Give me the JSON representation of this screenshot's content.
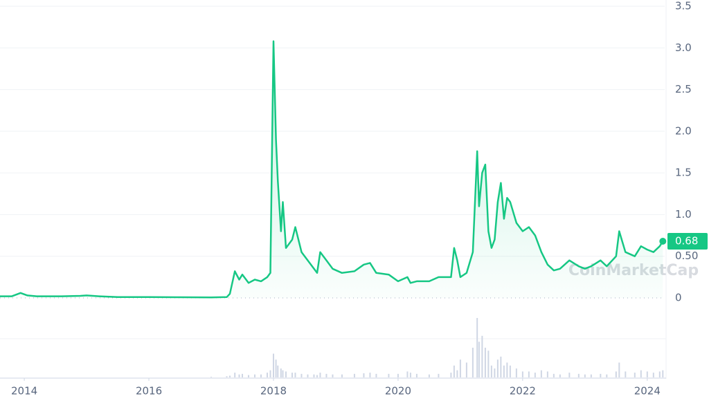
{
  "chart_data": {
    "type": "line",
    "watermark": "CoinMarketCap",
    "x": [
      2013.61,
      2013.8,
      2013.94,
      2014.05,
      2014.2,
      2014.6,
      2014.9,
      2015.0,
      2015.2,
      2015.5,
      2016.0,
      2016.5,
      2017.0,
      2017.25,
      2017.3,
      2017.38,
      2017.45,
      2017.5,
      2017.6,
      2017.7,
      2017.8,
      2017.9,
      2017.95,
      2018.0,
      2018.04,
      2018.07,
      2018.12,
      2018.15,
      2018.2,
      2018.3,
      2018.35,
      2018.45,
      2018.55,
      2018.65,
      2018.7,
      2018.75,
      2018.85,
      2018.95,
      2019.1,
      2019.3,
      2019.45,
      2019.55,
      2019.65,
      2019.85,
      2020.0,
      2020.15,
      2020.2,
      2020.3,
      2020.5,
      2020.65,
      2020.85,
      2020.9,
      2020.95,
      2021.0,
      2021.1,
      2021.2,
      2021.27,
      2021.3,
      2021.35,
      2021.4,
      2021.45,
      2021.5,
      2021.55,
      2021.6,
      2021.65,
      2021.7,
      2021.75,
      2021.8,
      2021.9,
      2022.0,
      2022.1,
      2022.2,
      2022.3,
      2022.4,
      2022.5,
      2022.6,
      2022.75,
      2022.9,
      2023.0,
      2023.1,
      2023.25,
      2023.35,
      2023.5,
      2023.55,
      2023.65,
      2023.8,
      2023.9,
      2024.0,
      2024.1,
      2024.2,
      2024.25
    ],
    "series": [
      {
        "color": "#16c784",
        "values": [
          0.02,
          0.02,
          0.06,
          0.03,
          0.02,
          0.02,
          0.025,
          0.03,
          0.02,
          0.01,
          0.01,
          0.008,
          0.007,
          0.01,
          0.05,
          0.32,
          0.22,
          0.28,
          0.18,
          0.22,
          0.2,
          0.25,
          0.3,
          3.08,
          1.9,
          1.4,
          0.8,
          1.15,
          0.6,
          0.7,
          0.85,
          0.55,
          0.45,
          0.35,
          0.3,
          0.55,
          0.45,
          0.35,
          0.3,
          0.32,
          0.4,
          0.42,
          0.3,
          0.28,
          0.2,
          0.25,
          0.18,
          0.2,
          0.2,
          0.25,
          0.25,
          0.6,
          0.45,
          0.25,
          0.3,
          0.55,
          1.76,
          1.1,
          1.5,
          1.6,
          0.8,
          0.6,
          0.7,
          1.15,
          1.38,
          0.95,
          1.2,
          1.15,
          0.9,
          0.8,
          0.85,
          0.75,
          0.55,
          0.4,
          0.33,
          0.35,
          0.45,
          0.38,
          0.35,
          0.38,
          0.45,
          0.38,
          0.5,
          0.8,
          0.55,
          0.5,
          0.62,
          0.58,
          0.55,
          0.62,
          0.68
        ]
      }
    ],
    "volume": [
      0,
      0,
      0,
      0,
      0,
      0,
      0,
      0,
      0,
      0,
      0,
      0,
      0.01,
      0.02,
      0.03,
      0.08,
      0.05,
      0.06,
      0.04,
      0.05,
      0.05,
      0.08,
      0.12,
      0.4,
      0.3,
      0.2,
      0.15,
      0.12,
      0.1,
      0.08,
      0.08,
      0.06,
      0.05,
      0.05,
      0.04,
      0.08,
      0.06,
      0.05,
      0.05,
      0.06,
      0.07,
      0.08,
      0.06,
      0.06,
      0.06,
      0.1,
      0.08,
      0.06,
      0.05,
      0.06,
      0.08,
      0.2,
      0.12,
      0.3,
      0.25,
      0.5,
      1.0,
      0.6,
      0.7,
      0.5,
      0.45,
      0.2,
      0.15,
      0.3,
      0.35,
      0.2,
      0.25,
      0.2,
      0.15,
      0.1,
      0.1,
      0.08,
      0.12,
      0.1,
      0.06,
      0.05,
      0.08,
      0.06,
      0.05,
      0.05,
      0.06,
      0.05,
      0.1,
      0.25,
      0.1,
      0.08,
      0.12,
      0.1,
      0.08,
      0.1,
      0.12
    ],
    "last_price": 0.68,
    "xlim": [
      2013.61,
      2024.28
    ],
    "xticks": [
      2014,
      2016,
      2018,
      2020,
      2022,
      2024
    ],
    "ylim": [
      0,
      3.5
    ],
    "yticks": [
      0,
      {
        "value": 0.5,
        "label": "0.50"
      },
      {
        "value": 1,
        "label": "1.0"
      },
      1.5,
      {
        "value": 2,
        "label": "2.0"
      },
      2.5,
      {
        "value": 3,
        "label": "3.0"
      },
      3.5
    ],
    "grid": true
  }
}
